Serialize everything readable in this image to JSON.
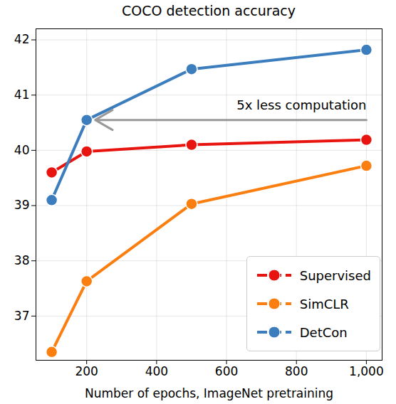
{
  "chart_data": {
    "type": "line",
    "title": "COCO detection accuracy",
    "x_label": "Number of epochs, ImageNet pretraining",
    "x": [
      100,
      200,
      500,
      1000
    ],
    "series": [
      {
        "name": "Supervised",
        "color": "#e8140f",
        "values": [
          39.6,
          39.98,
          40.1,
          40.19
        ]
      },
      {
        "name": "SimCLR",
        "color": "#fb7f10",
        "values": [
          36.35,
          37.63,
          39.03,
          39.72
        ]
      },
      {
        "name": "DetCon",
        "color": "#3b7dbd",
        "values": [
          39.1,
          40.55,
          41.47,
          41.82
        ]
      }
    ],
    "xlim": [
      55,
      1045
    ],
    "xticks": [
      200,
      400,
      600,
      800,
      {
        "value": 1000,
        "label": "1,000"
      }
    ],
    "ylim": [
      36.2,
      42.2
    ],
    "yticks": [
      37,
      38,
      39,
      40,
      41,
      42
    ],
    "grid": true,
    "legend": "lower right",
    "annotations": [
      {
        "text": "5x less computation",
        "x_from": 1000,
        "x_to": 200,
        "y": 40.55
      }
    ]
  }
}
